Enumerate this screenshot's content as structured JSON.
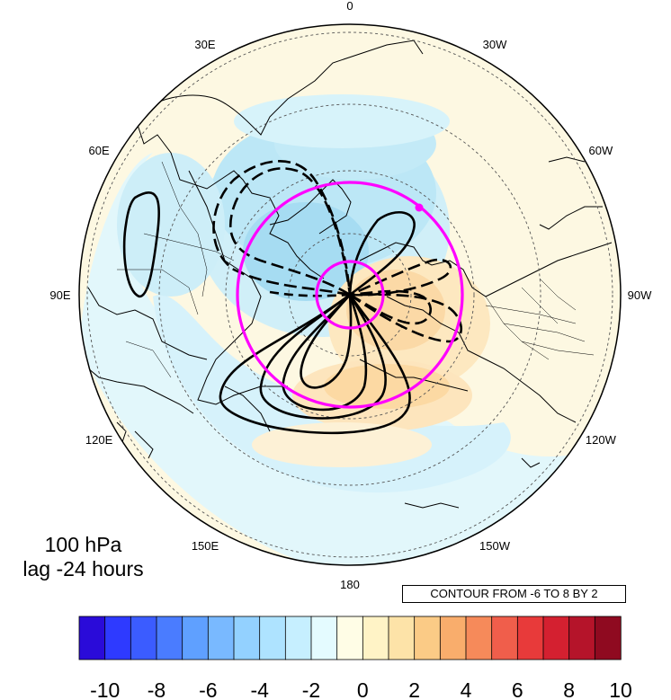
{
  "plot": {
    "level": "100 hPa",
    "lag": "lag -24 hours",
    "contour_note": "CONTOUR FROM -6 TO 8 BY 2"
  },
  "longitude_labels": [
    {
      "text": "0",
      "deg": 0
    },
    {
      "text": "30W",
      "deg": -30
    },
    {
      "text": "60W",
      "deg": -60
    },
    {
      "text": "90W",
      "deg": -90
    },
    {
      "text": "120W",
      "deg": -120
    },
    {
      "text": "150W",
      "deg": -150
    },
    {
      "text": "180",
      "deg": 180
    },
    {
      "text": "150E",
      "deg": 150
    },
    {
      "text": "120E",
      "deg": 120
    },
    {
      "text": "90E",
      "deg": 90
    },
    {
      "text": "60E",
      "deg": 60
    },
    {
      "text": "30E",
      "deg": 30
    }
  ],
  "colorbar": {
    "colors": [
      "#2a0bd9",
      "#2e3aff",
      "#3b5cff",
      "#4a7cff",
      "#5fa0ff",
      "#79b9ff",
      "#93d1ff",
      "#aee3ff",
      "#c6efff",
      "#e4fbff",
      "#fffde6",
      "#fff3c6",
      "#fde3a8",
      "#fbcb86",
      "#f9ad6c",
      "#f68a5a",
      "#f05e4b",
      "#e83a3a",
      "#d42030",
      "#b5142a",
      "#8f0a20"
    ],
    "labels": [
      "-10",
      "-8",
      "-6",
      "-4",
      "-2",
      "0",
      "2",
      "4",
      "6",
      "8",
      "10"
    ]
  },
  "colors": {
    "magenta_circle": "#ff00ff",
    "contour": "#000000",
    "coast": "#000000",
    "grid": "#555555"
  }
}
